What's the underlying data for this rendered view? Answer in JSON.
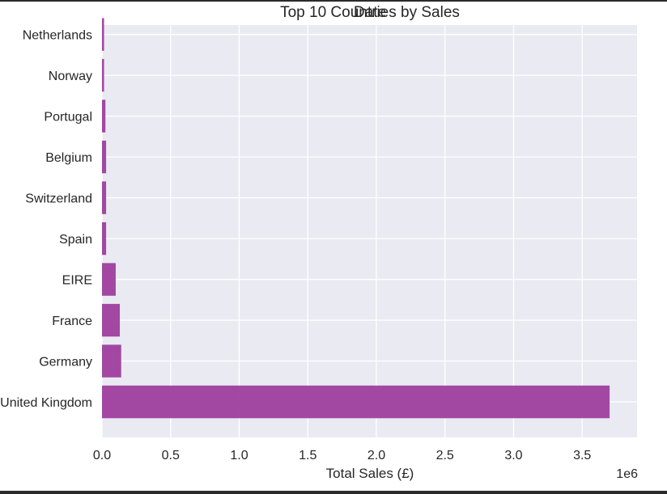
{
  "chart_data": {
    "type": "bar",
    "orientation": "horizontal",
    "title": "Top 10 Countries by Sales",
    "title_overlay": "Date",
    "xlabel": "Total Sales (£)",
    "ylabel": "",
    "x_offset_label": "1e6",
    "xlim": [
      0,
      3.9
    ],
    "x_ticks": [
      0.0,
      0.5,
      1.0,
      1.5,
      2.0,
      2.5,
      3.0,
      3.5
    ],
    "x_tick_labels": [
      "0.0",
      "0.5",
      "1.0",
      "1.5",
      "2.0",
      "2.5",
      "3.0",
      "3.5"
    ],
    "categories": [
      "United Kingdom",
      "Germany",
      "France",
      "EIRE",
      "Spain",
      "Switzerland",
      "Belgium",
      "Portugal",
      "Norway",
      "Netherlands"
    ],
    "values": [
      3.7,
      0.14,
      0.13,
      0.1,
      0.03,
      0.03,
      0.03,
      0.025,
      0.015,
      0.015
    ],
    "bar_color": "#9b3a9b",
    "plot_background": "#eaeaf2",
    "grid": true,
    "legend": false
  }
}
